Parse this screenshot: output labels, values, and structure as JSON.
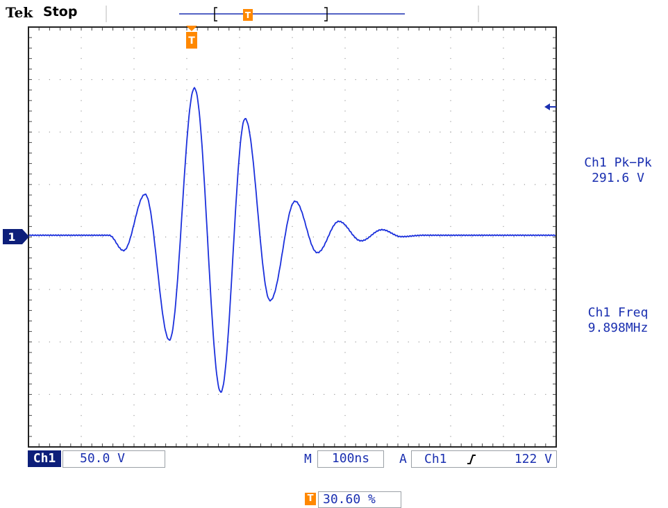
{
  "header": {
    "brand": "Tek",
    "acquisition_state": "Stop"
  },
  "scope": {
    "trace_color": "#1a2fdc",
    "trigger_marker": "T",
    "channel_marker": "1"
  },
  "measurements": [
    {
      "label": "Ch1 Pk−Pk",
      "value": "291.6 V"
    },
    {
      "label": "Ch1 Freq",
      "value": "9.898MHz"
    }
  ],
  "status_bar": {
    "channel": "Ch1",
    "volts_per_div": "50.0 V",
    "timebase_prefix": "M",
    "timebase": "100ns",
    "trigger_prefix": "A",
    "trigger_source": "Ch1",
    "trigger_slope_icon": "rising-edge-icon",
    "trigger_level": "122 V"
  },
  "trigger_position": {
    "icon": "T",
    "value": "30.60 %"
  }
}
